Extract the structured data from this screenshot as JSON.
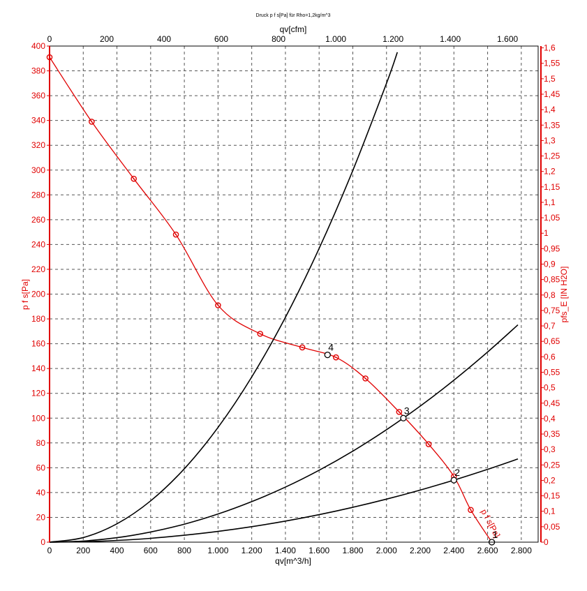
{
  "chart_data": {
    "type": "line",
    "title": "Druck p f s[Pa] für Rho=1,2kg/m^3",
    "xlabel_bottom": "qv[m^3/h]",
    "xlabel_top": "qv[cfm]",
    "ylabel_left": "p f s[Pa]",
    "ylabel_right": "pfs_E [IN H2O]",
    "xlim": [
      0,
      2900
    ],
    "ylim": [
      0,
      400
    ],
    "x_ticks_bottom": [
      "0",
      "200",
      "400",
      "600",
      "800",
      "1.000",
      "1.200",
      "1.400",
      "1.600",
      "1.800",
      "2.000",
      "2.200",
      "2.400",
      "2.600",
      "2.800"
    ],
    "x_ticks_top": [
      "0",
      "200",
      "400",
      "600",
      "800",
      "1.000",
      "1.200",
      "1.400",
      "1.600"
    ],
    "y_ticks_left": [
      "0",
      "20",
      "40",
      "60",
      "80",
      "100",
      "120",
      "140",
      "160",
      "180",
      "200",
      "220",
      "240",
      "260",
      "280",
      "300",
      "320",
      "340",
      "360",
      "380",
      "400"
    ],
    "y_ticks_right": [
      "0",
      "0,05",
      "0,1",
      "0,15",
      "0,2",
      "0,25",
      "0,3",
      "0,35",
      "0,4",
      "0,45",
      "0,5",
      "0,55",
      "0,6",
      "0,65",
      "0,7",
      "0,75",
      "0,8",
      "0,85",
      "0,9",
      "0,95",
      "1",
      "1,05",
      "1,1",
      "1,15",
      "1,2",
      "1,25",
      "1,3",
      "1,35",
      "1,4",
      "1,45",
      "1,5",
      "1,55",
      "1,6"
    ],
    "grid": true,
    "series": [
      {
        "name": "p f s[Pa]",
        "color": "#e00000",
        "marker": "circle-dot",
        "x": [
          0,
          250,
          500,
          750,
          1000,
          1250,
          1500,
          1700,
          1875,
          2075,
          2250,
          2400,
          2500,
          2625
        ],
        "y": [
          391,
          339,
          293,
          248,
          191,
          168,
          157,
          149,
          132,
          105,
          79,
          53,
          26,
          0
        ]
      },
      {
        "name": "",
        "color": "#000000",
        "x": [
          0,
          200,
          400,
          600,
          800,
          1000,
          1200,
          1400,
          1600,
          1800,
          2000,
          2200,
          2400,
          2600,
          2670
        ],
        "y": [
          0,
          3.7,
          14.8,
          33.3,
          59.2,
          92.5,
          133.2,
          181.3,
          236.8,
          299.7,
          370,
          447.7,
          532.8,
          625.3,
          659.5
        ]
      },
      {
        "name": "",
        "color": "#000000",
        "x": [
          0,
          200,
          400,
          600,
          800,
          1000,
          1200,
          1400,
          1600,
          1800,
          2000,
          2200,
          2400,
          2600,
          2780
        ],
        "y": [
          0,
          0.9,
          3.6,
          8.2,
          14.5,
          22.7,
          32.7,
          44.4,
          58.0,
          73.4,
          90.7,
          109.7,
          130.6,
          153.3,
          175.2
        ]
      },
      {
        "name": "",
        "color": "#000000",
        "x": [
          0,
          200,
          400,
          600,
          800,
          1000,
          1200,
          1400,
          1600,
          1800,
          2000,
          2200,
          2400,
          2600,
          2780
        ],
        "y": [
          0,
          0.35,
          1.4,
          3.1,
          5.6,
          8.7,
          12.5,
          17.0,
          22.2,
          28.1,
          34.7,
          42.0,
          50.0,
          58.7,
          67.1
        ]
      }
    ],
    "operating_points": [
      {
        "label": "1",
        "x": 2625,
        "y": 0
      },
      {
        "label": "2",
        "x": 2400,
        "y": 50
      },
      {
        "label": "3",
        "x": 2100,
        "y": 100
      },
      {
        "label": "4",
        "x": 1650,
        "y": 151
      }
    ]
  }
}
